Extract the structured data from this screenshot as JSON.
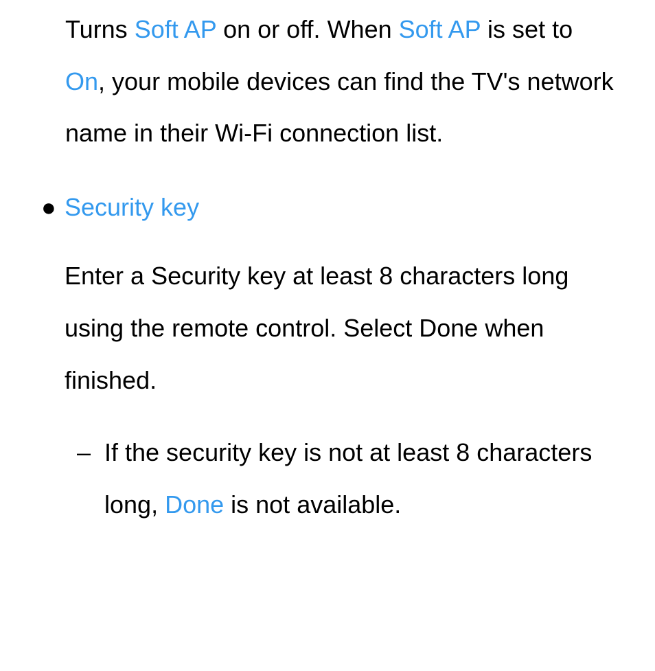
{
  "colors": {
    "highlight": "#3399ee",
    "text": "#000000",
    "background": "#ffffff"
  },
  "typography": {
    "fontsize": 36,
    "line_height": 2.1,
    "font_family": "Arial, Helvetica, sans-serif"
  },
  "paragraph1": {
    "part1": "Turns ",
    "link1": "Soft AP",
    "part2": " on or off. When ",
    "link2": "Soft AP",
    "part3": " is set to ",
    "link3": "On",
    "part4": ", your mobile devices can find the TV's network name in their Wi-Fi connection list."
  },
  "bullet": {
    "marker": "●",
    "label": "Security key"
  },
  "paragraph2": "Enter a Security key at least 8 characters long using the remote control. Select Done when finished.",
  "dash": {
    "marker": "–",
    "part1": "If the security key is not at least 8 characters long, ",
    "link1": "Done",
    "part2": " is not available."
  }
}
